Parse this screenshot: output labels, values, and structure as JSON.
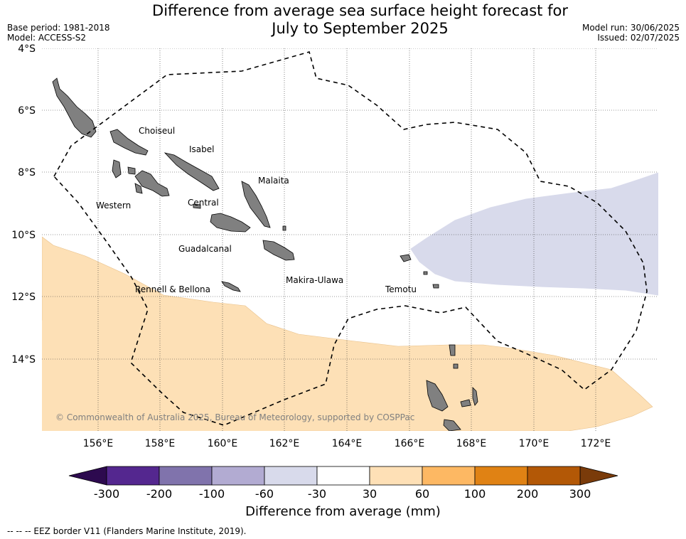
{
  "title_line1": "Difference from average sea surface height forecast for",
  "title_line2": "July to September 2025",
  "meta_left": {
    "base_period": "Base period: 1981-2018",
    "model": "Model: ACCESS-S2"
  },
  "meta_right": {
    "model_run": "Model run: 30/06/2025",
    "issued": "Issued: 02/07/2025"
  },
  "copyright": "© Commonwealth of Australia 2025, Bureau of Meteorology, supported by COSPPac",
  "lat_ticks": [
    "4°S",
    "6°S",
    "8°S",
    "10°S",
    "12°S",
    "14°S"
  ],
  "lon_ticks": [
    "156°E",
    "158°E",
    "160°E",
    "162°E",
    "164°E",
    "166°E",
    "168°E",
    "170°E",
    "172°E"
  ],
  "provinces": [
    "Choiseul",
    "Isabel",
    "Malaita",
    "Western",
    "Central",
    "Guadalcanal",
    "Makira-Ulawa",
    "Rennell & Bellona",
    "Temotu"
  ],
  "colorbar": {
    "label": "Difference from average (mm)",
    "ticks": [
      "-300",
      "-200",
      "-100",
      "-60",
      "-30",
      "30",
      "60",
      "100",
      "200",
      "300"
    ],
    "under_color": "#2d0a4f",
    "over_color": "#7a3b0a",
    "colors": [
      "#54278f",
      "#8073ac",
      "#b2abd2",
      "#d8daeb",
      "#ffffff",
      "#fee0b6",
      "#fdb863",
      "#e08214",
      "#b35806"
    ]
  },
  "fields": {
    "negative_color": "#d8daeb",
    "positive_color": "#fde0b6",
    "land_color": "#808080"
  },
  "footnote": "-- -- -- EEZ border V11 (Flanders Marine Institute, 2019)."
}
